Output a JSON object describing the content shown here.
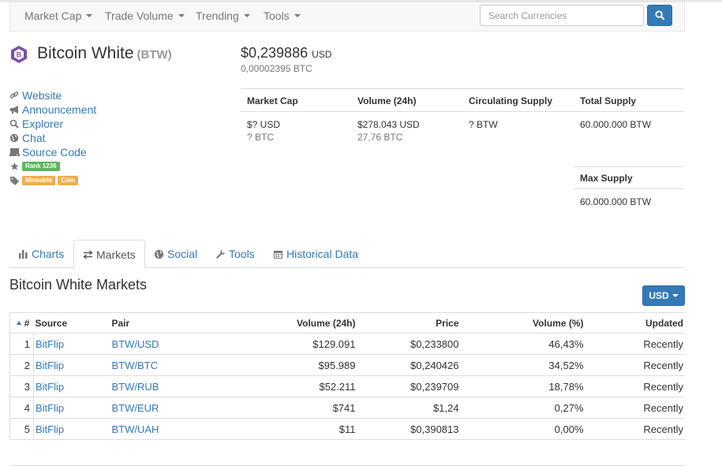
{
  "nav": {
    "items": [
      "Market Cap",
      "Trade Volume",
      "Trending",
      "Tools"
    ],
    "search_placeholder": "Search Currencies"
  },
  "coin": {
    "name": "Bitcoin White",
    "symbol": "(BTW)",
    "price_usd": "$0,239886",
    "price_usd_currency": "USD",
    "price_btc": "0,00002395 BTC"
  },
  "links": {
    "website": "Website",
    "announcement": "Announcement",
    "explorer": "Explorer",
    "chat": "Chat",
    "source_code": "Source Code",
    "rank": "Rank 1236",
    "tags": [
      "Mineable",
      "Coin"
    ]
  },
  "stats": {
    "headers": [
      "Market Cap",
      "Volume (24h)",
      "Circulating Supply",
      "Total Supply"
    ],
    "market_cap_usd": "$? USD",
    "market_cap_btc": "? BTC",
    "volume_usd": "$278.043 USD",
    "volume_btc": "27,76 BTC",
    "circulating_supply": "? BTW",
    "total_supply": "60.000.000 BTW",
    "max_supply_label": "Max Supply",
    "max_supply": "60.000.000 BTW"
  },
  "tabs": [
    {
      "label": "Charts",
      "icon": "bar-chart-icon"
    },
    {
      "label": "Markets",
      "icon": "exchange-icon",
      "active": true
    },
    {
      "label": "Social",
      "icon": "globe-icon"
    },
    {
      "label": "Tools",
      "icon": "wrench-icon"
    },
    {
      "label": "Historical Data",
      "icon": "calendar-icon"
    }
  ],
  "markets": {
    "title": "Bitcoin White Markets",
    "currency_button": "USD",
    "columns": [
      "#",
      "Source",
      "Pair",
      "Volume (24h)",
      "Price",
      "Volume (%)",
      "Updated"
    ],
    "rows": [
      {
        "rank": "1",
        "source": "BitFlip",
        "pair": "BTW/USD",
        "volume": "$129.091",
        "price": "$0,233800",
        "volume_pct": "46,43%",
        "updated": "Recently"
      },
      {
        "rank": "2",
        "source": "BitFlip",
        "pair": "BTW/BTC",
        "volume": "$95.989",
        "price": "$0,240426",
        "volume_pct": "34,52%",
        "updated": "Recently"
      },
      {
        "rank": "3",
        "source": "BitFlip",
        "pair": "BTW/RUB",
        "volume": "$52.211",
        "price": "$0,239709",
        "volume_pct": "18,78%",
        "updated": "Recently"
      },
      {
        "rank": "4",
        "source": "BitFlip",
        "pair": "BTW/EUR",
        "volume": "$741",
        "price": "$1,24",
        "volume_pct": "0,27%",
        "updated": "Recently"
      },
      {
        "rank": "5",
        "source": "BitFlip",
        "pair": "BTW/UAH",
        "volume": "$11",
        "price": "$0,390813",
        "volume_pct": "0,00%",
        "updated": "Recently"
      }
    ]
  },
  "colors": {
    "link": "#337ab7",
    "logo": "#7b4fa6",
    "rank_label": "#5cb85c",
    "tag_label": "#f0ad4e"
  }
}
